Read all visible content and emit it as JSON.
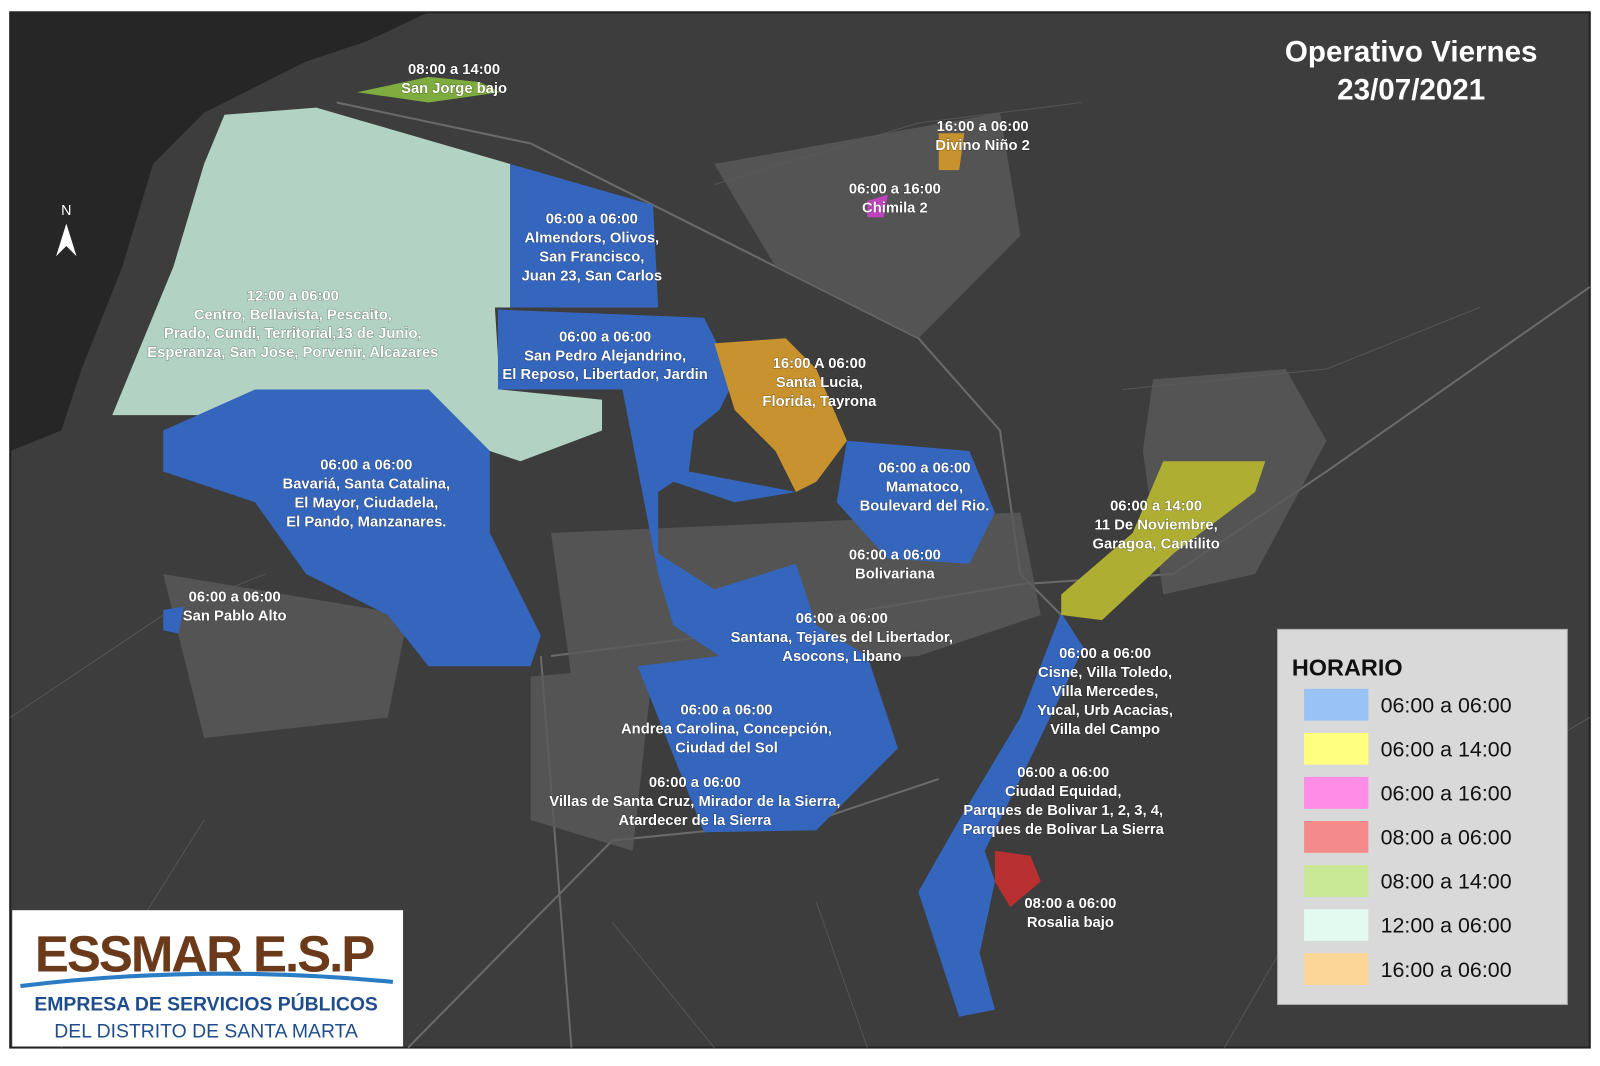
{
  "title": {
    "line1": "Operativo Viernes",
    "line2": "23/07/2021"
  },
  "north": "N",
  "zones": [
    {
      "time": "08:00 a 14:00",
      "lines": [
        "San Jorge bajo"
      ]
    },
    {
      "time": "16:00 a 06:00",
      "lines": [
        "Divino Niño 2"
      ]
    },
    {
      "time": "06:00 a 16:00",
      "lines": [
        "Chimila 2"
      ]
    },
    {
      "time": "06:00 a 06:00",
      "lines": [
        "Almendors, Olivos,",
        "San Francisco,",
        "Juan 23, San Carlos"
      ]
    },
    {
      "time": "12:00 a 06:00",
      "lines": [
        "Centro, Bellavista, Pescaito,",
        "Prado, Cundi, Territorial,13 de Junio,",
        "Esperanza, San Jose, Porvenir, Alcazares"
      ]
    },
    {
      "time": "06:00 a 06:00",
      "lines": [
        "San Pedro Alejandrino,",
        "El Reposo, Libertador, Jardin"
      ]
    },
    {
      "time": "16:00 A 06:00",
      "lines": [
        "Santa Lucia,",
        "Florida, Tayrona"
      ]
    },
    {
      "time": "06:00 a 06:00",
      "lines": [
        "Bavariá, Santa Catalina,",
        "El Mayor, Ciudadela,",
        "El Pando, Manzanares."
      ]
    },
    {
      "time": "06:00 a 06:00",
      "lines": [
        "Mamatoco,",
        "Boulevard del Rio."
      ]
    },
    {
      "time": "06:00 a 14:00",
      "lines": [
        "11 De Noviembre,",
        "Garagoa, Cantilito"
      ]
    },
    {
      "time": "06:00 a 06:00",
      "lines": [
        "Bolivariana"
      ]
    },
    {
      "time": "06:00 a 06:00",
      "lines": [
        "San Pablo Alto"
      ]
    },
    {
      "time": "06:00 a 06:00",
      "lines": [
        "Santana, Tejares del Libertador,",
        "Asocons, Libano"
      ]
    },
    {
      "time": "06:00 a 06:00",
      "lines": [
        "Cisne, Villa Toledo,",
        "Villa Mercedes,",
        "Yucal, Urb Acacias,",
        "Villa del Campo"
      ]
    },
    {
      "time": "06:00 a 06:00",
      "lines": [
        "Andrea Carolina, Concepción,",
        "Ciudad del Sol"
      ]
    },
    {
      "time": "06:00 a 06:00",
      "lines": [
        "Villas de Santa Cruz, Mirador de la Sierra,",
        "Atardecer de la Sierra"
      ]
    },
    {
      "time": "06:00 a 06:00",
      "lines": [
        "Ciudad Equidad,",
        "Parques de Bolivar 1, 2, 3, 4,",
        "Parques de Bolivar La Sierra"
      ]
    },
    {
      "time": "08:00 a 06:00",
      "lines": [
        "Rosalia  bajo"
      ]
    }
  ],
  "legend": {
    "title": "HORARIO",
    "items": [
      {
        "label": "06:00 a 06:00",
        "color": "#99c2f5"
      },
      {
        "label": "06:00 a 14:00",
        "color": "#ffff80"
      },
      {
        "label": "06:00 a 16:00",
        "color": "#ff8ce6"
      },
      {
        "label": "08:00 a 06:00",
        "color": "#f58a8a"
      },
      {
        "label": "08:00 a 14:00",
        "color": "#c8e896"
      },
      {
        "label": "12:00 a 06:00",
        "color": "#e3faf0"
      },
      {
        "label": "16:00 a 06:00",
        "color": "#fcd696"
      }
    ]
  },
  "logo": {
    "brand": "ESSMAR E.S.P",
    "line1": "EMPRESA DE SERVICIOS PÚBLICOS",
    "line2": "DEL DISTRITO DE SANTA MARTA"
  }
}
